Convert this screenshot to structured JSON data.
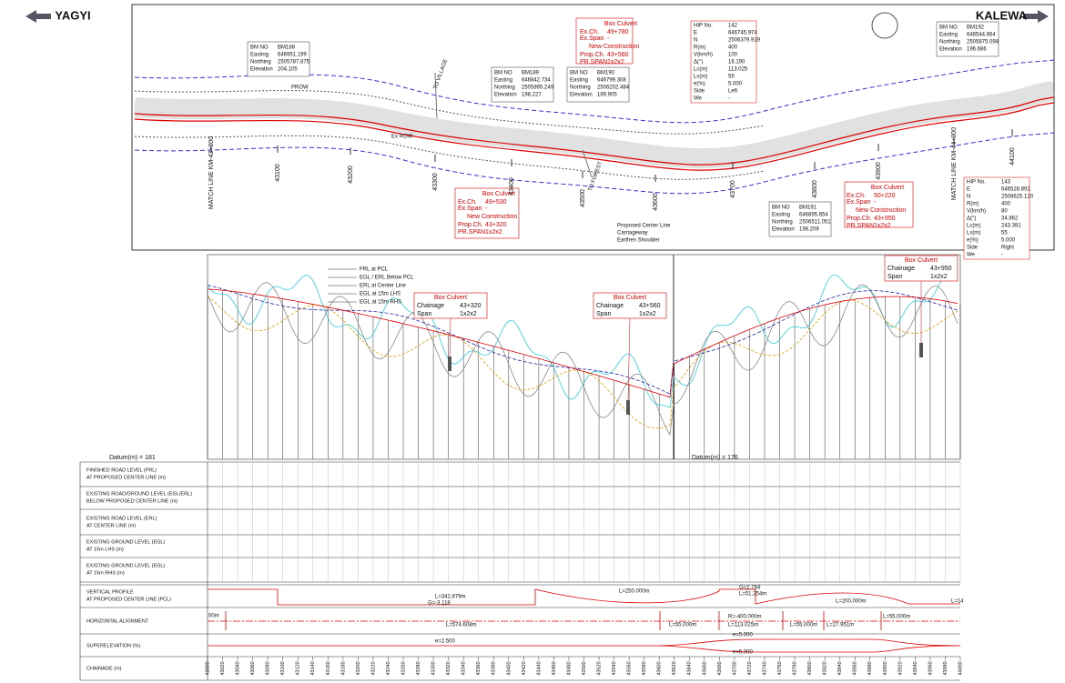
{
  "header": {
    "left_direction": "YAGYI",
    "right_direction": "KALEWA"
  },
  "plan": {
    "bm_labels": [
      "BM NO",
      "Easting",
      "Northing",
      "Elevation"
    ],
    "bench_marks": [
      {
        "no": "BM188",
        "easting": "646951.199",
        "northing": "2505787.875",
        "elevation": "204.105"
      },
      {
        "no": "BM189",
        "easting": "646842.734",
        "northing": "2505895.249",
        "elevation": "198.227"
      },
      {
        "no": "BM190",
        "easting": "646799.308",
        "northing": "2506202.484",
        "elevation": "189.905"
      },
      {
        "no": "BM191",
        "easting": "646895.654",
        "northing": "2506511.051",
        "elevation": "198.209"
      },
      {
        "no": "BM192",
        "easting": "646544.664",
        "northing": "2505875.098",
        "elevation": "196.686"
      }
    ],
    "culvert_labels": [
      "Ex.Ch.",
      "Ex.Span",
      "Prop.Ch.",
      "PR.SPAN"
    ],
    "culverts": [
      {
        "title": "Box Culvert",
        "ex_ch": "49+780",
        "ex_span": "-",
        "note": "New Construction",
        "prop_ch": "43+560",
        "pr_span": "1x2x2"
      },
      {
        "title": "Box Culvert",
        "ex_ch": "49+530",
        "ex_span": "-",
        "note": "New Construction",
        "prop_ch": "43+320",
        "pr_span": "1x2x2"
      },
      {
        "title": "Box Culvert",
        "ex_ch": "50+220",
        "ex_span": "-",
        "note": "New Construction",
        "prop_ch": "43+950",
        "pr_span": "1x2x2"
      }
    ],
    "hip_labels": [
      "HIP No.",
      "E",
      "N",
      "R(m)",
      "V(km/h)",
      "Δ(°)",
      "Lc(m)",
      "Ls(m)",
      "e(%)",
      "Side",
      "We"
    ],
    "hip_tables": [
      [
        "142",
        "646745.974",
        "2506379.919",
        "400",
        "100",
        "16.190",
        "113.025",
        "55",
        "5.000",
        "Left",
        "-"
      ],
      [
        "143",
        "646528.891",
        "2508625.120",
        "400",
        "80",
        "34.862",
        "243.381",
        "55",
        "5.000",
        "Right",
        "-"
      ]
    ],
    "chainage_marks": [
      "MATCH LINE KM-43+000",
      "43100",
      "43200",
      "43300",
      "43400",
      "43500",
      "43600",
      "43700",
      "43800",
      "43900",
      "MATCH LINE KM-44+000",
      "44100"
    ],
    "labels": {
      "to_village": "TO VILLAGE",
      "to_forest": "TO FOREST",
      "center_line": "Proposed Center Line",
      "carriageway": "Carriageway",
      "shoulder": "Earthen Shoulder",
      "prow": "PROW",
      "ex_row": "Ex ROW"
    }
  },
  "profile": {
    "legend": [
      "FRL at PCL",
      "EGL / ERL Below PCL",
      "ERL at Center Line",
      "EGL at 15m LHS",
      "EGL at 15m RHS"
    ],
    "culvert_labels": [
      "Chainage",
      "Span"
    ],
    "culverts": [
      {
        "title": "Box Culvert",
        "chainage": "43+320",
        "span": "1x2x2"
      },
      {
        "title": "Box Culvert",
        "chainage": "43+560",
        "span": "1x2x2"
      },
      {
        "title": "Box Culvert",
        "chainage": "43+950",
        "span": "1x2x2"
      }
    ],
    "datums": [
      "Datum(m) = 181",
      "Datum(m) = 176"
    ]
  },
  "table": {
    "row_headers": [
      [
        "FINISHED ROAD LEVEL (FRL)",
        "AT PROPOSED CENTER LINE (m)"
      ],
      [
        "EXISTING ROAD/GROUND LEVEL (EGL/ERL)",
        "BELOW PROPOSED CENTER LINE (m)"
      ],
      [
        "EXISTING ROAD LEVEL (ERL)",
        "AT CENTER LINE (m)"
      ],
      [
        "EXISTING GROUND LEVEL (EGL)",
        "AT 15m LHS (m)"
      ],
      [
        "EXISTING GROUND LEVEL (EGL)",
        "AT 15m RHS (m)"
      ],
      [
        "VERTICAL PROFILE",
        "AT PROPOSED CENTER LINE (PCL)"
      ],
      [
        "HORIZONTAL ALIGNMENT"
      ],
      [
        "SUPERELEVATION (%)"
      ],
      [
        "CHAINAGE (m)"
      ]
    ],
    "chainages": [
      "43000",
      "43020",
      "43040",
      "43060",
      "43080",
      "43100",
      "43120",
      "43140",
      "43160",
      "43180",
      "43200",
      "43220",
      "43240",
      "43260",
      "43280",
      "43300",
      "43320",
      "43340",
      "43360",
      "43380",
      "43400",
      "43420",
      "43440",
      "43460",
      "43480",
      "43500",
      "43520",
      "43540",
      "43560",
      "43580",
      "43600",
      "43620",
      "43640",
      "43660",
      "43680",
      "43700",
      "43720",
      "43740",
      "43760",
      "43780",
      "43800",
      "43820",
      "43840",
      "43860",
      "43880",
      "43900",
      "43920",
      "43940",
      "43960",
      "43980",
      "44000"
    ],
    "vertical_profile": [
      "L=342.879m",
      "G=-3.118",
      "L=250.000m",
      "G=2.784",
      "L=51.254m",
      "L=200.000m",
      "L=14"
    ],
    "horizontal_alignment": [
      "00m",
      "L=574.608m",
      "R=-400.000m",
      "L=55.000m",
      "L=113.025m",
      "L=55.000m",
      "L=27.951m",
      "L=55.000m"
    ],
    "superelevation": [
      "e=2.500",
      "e=5.000",
      "e=5.000"
    ]
  }
}
